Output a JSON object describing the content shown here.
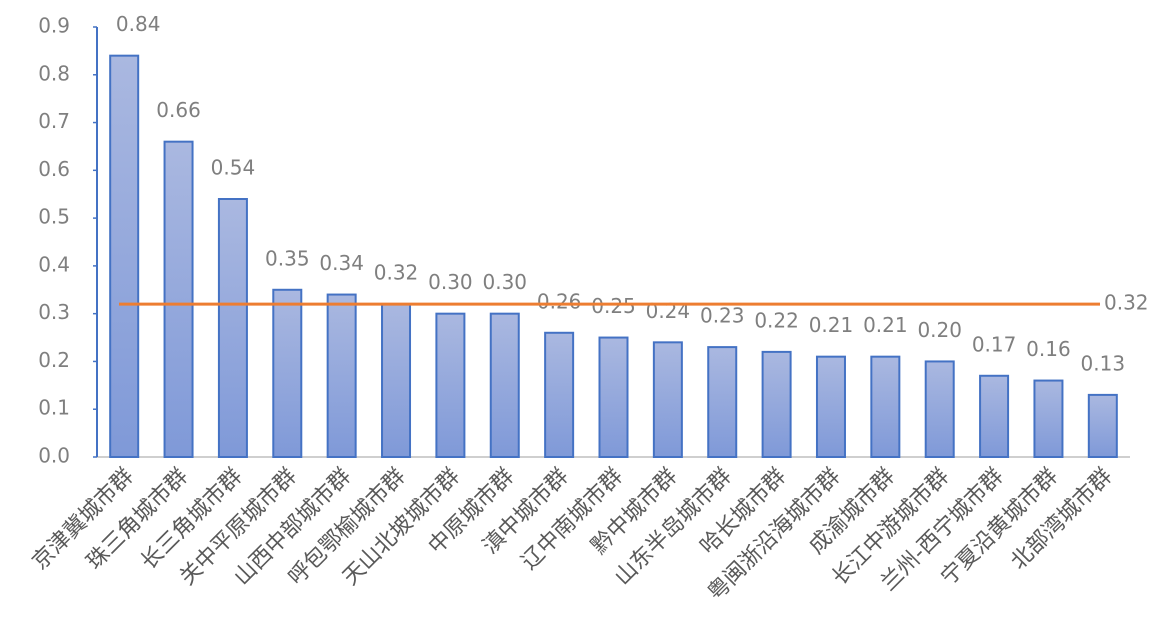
{
  "chart_data": {
    "type": "bar",
    "categories": [
      "京津冀城市群",
      "珠三角城市群",
      "长三角城市群",
      "关中平原城市群",
      "山西中部城市群",
      "呼包鄂榆城市群",
      "天山北坡城市群",
      "中原城市群",
      "滇中城市群",
      "辽中南城市群",
      "黔中城市群",
      "山东半岛城市群",
      "哈长城市群",
      "粤闽浙沿海城市群",
      "成渝城市群",
      "长江中游城市群",
      "兰州-西宁城市群",
      "宁夏沿黄城市群",
      "北部湾城市群"
    ],
    "values": [
      0.84,
      0.66,
      0.54,
      0.35,
      0.34,
      0.32,
      0.3,
      0.3,
      0.26,
      0.25,
      0.24,
      0.23,
      0.22,
      0.21,
      0.21,
      0.2,
      0.17,
      0.16,
      0.13
    ],
    "value_labels": [
      "0.84",
      "0.66",
      "0.54",
      "0.35",
      "0.34",
      "0.32",
      "0.30",
      "0.30",
      "0.26",
      "0.25",
      "0.24",
      "0.23",
      "0.22",
      "0.21",
      "0.21",
      "0.20",
      "0.17",
      "0.16",
      "0.13"
    ],
    "color": "#4472c4",
    "ylim": [
      0,
      0.9
    ],
    "yticks": [
      {
        "value": 0,
        "label": "0.0"
      },
      0.1,
      0.2,
      0.3,
      0.4,
      0.5,
      0.6,
      0.7,
      0.8,
      0.9
    ],
    "reference_line": {
      "value": 0.32,
      "color": "#ed7d31"
    },
    "grid": false
  }
}
